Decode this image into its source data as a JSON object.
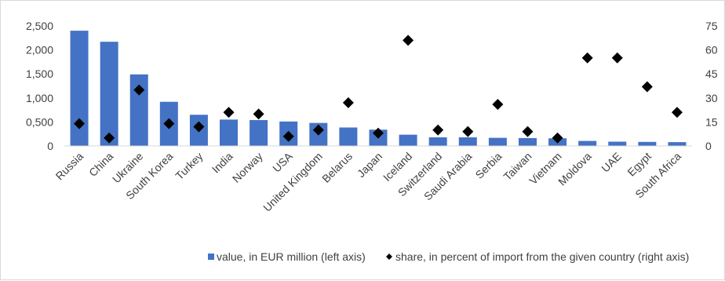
{
  "chart_data": {
    "type": "bar",
    "categories": [
      "Russia",
      "China",
      "Ukraine",
      "South Korea",
      "Turkey",
      "India",
      "Norway",
      "USA",
      "United Kingdom",
      "Belarus",
      "Japan",
      "Iceland",
      "Switzerland",
      "Saudi Arabia",
      "Serbia",
      "Taiwan",
      "Vietnam",
      "Moldova",
      "UAE",
      "Egypt",
      "South Africa"
    ],
    "series": [
      {
        "name": "value, in EUR million (left axis)",
        "kind": "bar",
        "axis": "left",
        "color": "#4472c4",
        "values": [
          2400,
          2170,
          1490,
          920,
          650,
          550,
          540,
          510,
          480,
          385,
          340,
          235,
          180,
          180,
          170,
          165,
          160,
          105,
          90,
          85,
          80
        ]
      },
      {
        "name": "share, in percent of import from the given country (right axis)",
        "kind": "scatter",
        "axis": "right",
        "marker": "diamond",
        "color": "#000000",
        "values": [
          14,
          5,
          35,
          14,
          12,
          21,
          20,
          6,
          10,
          27,
          8,
          66,
          10,
          9,
          26,
          9,
          5,
          55,
          55,
          37,
          21
        ]
      }
    ],
    "y_left": {
      "ylim": [
        0,
        2500
      ],
      "ticks": [
        "2,500",
        "2,000",
        "1,500",
        "1,000",
        "0,500",
        "0"
      ]
    },
    "y_right": {
      "ylim": [
        0,
        75
      ],
      "ticks": [
        "75",
        "60",
        "45",
        "30",
        "15",
        "0"
      ]
    },
    "grid": false,
    "legend": "bottom"
  }
}
